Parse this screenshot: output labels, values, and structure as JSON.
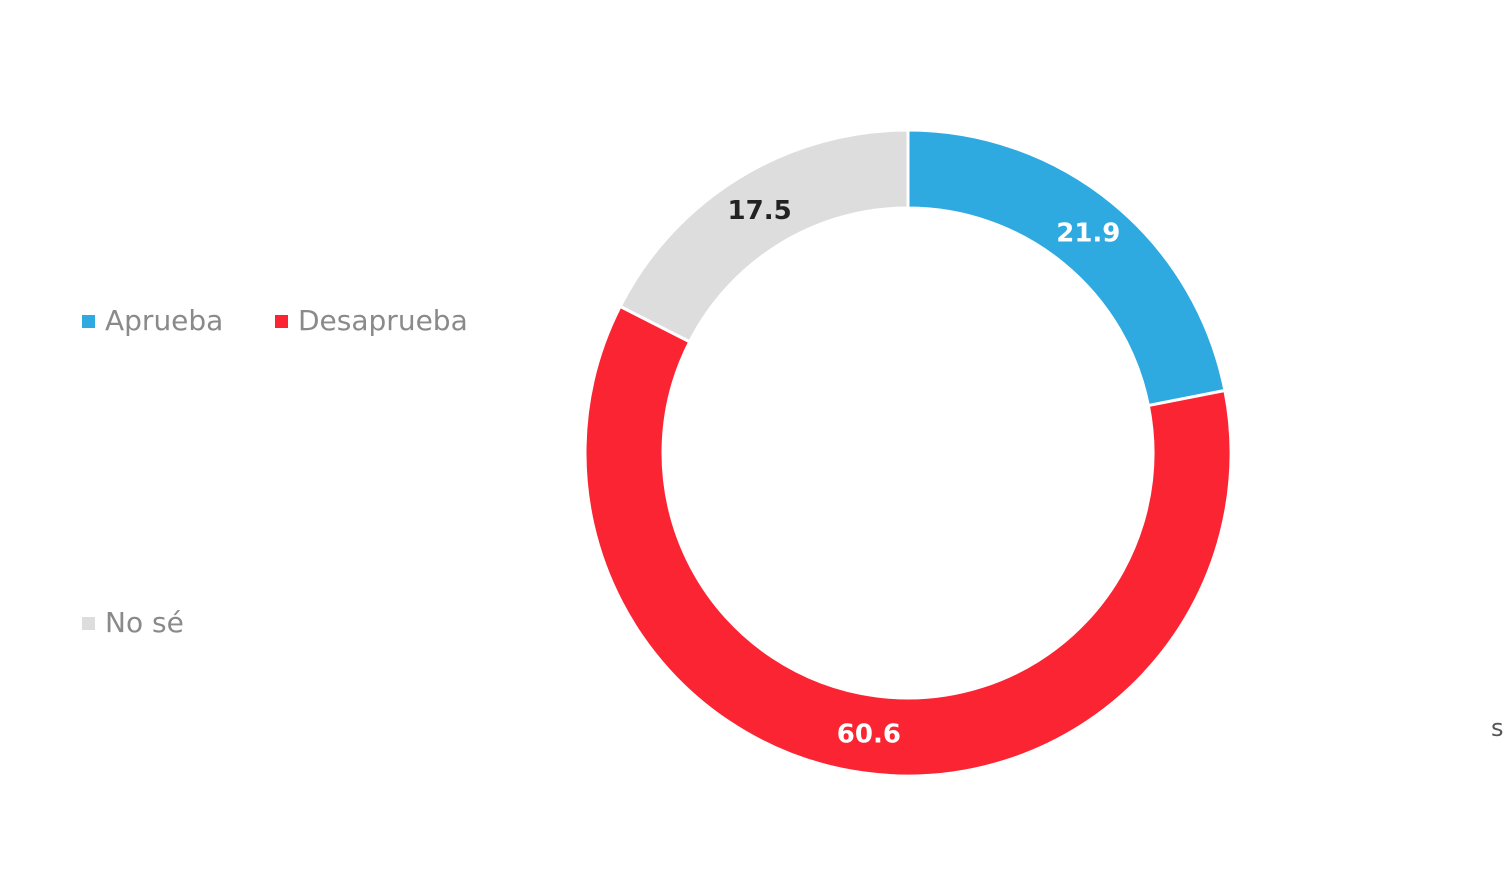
{
  "chart_data": {
    "type": "pie",
    "variant": "donut",
    "title": "",
    "categories": [
      "Aprueba",
      "Desaprueba",
      "No sé"
    ],
    "values": [
      21.9,
      60.6,
      17.5
    ],
    "data_labels": [
      "21.9",
      "60.6",
      "17.5"
    ],
    "colors": [
      "#2eaae1",
      "#fb2433",
      "#dddddd"
    ],
    "label_colors": [
      "#ffffff",
      "#ffffff",
      "#222222"
    ],
    "start_angle_deg": 0,
    "direction": "clockwise",
    "legend_position": "left"
  },
  "edge_text": "s"
}
